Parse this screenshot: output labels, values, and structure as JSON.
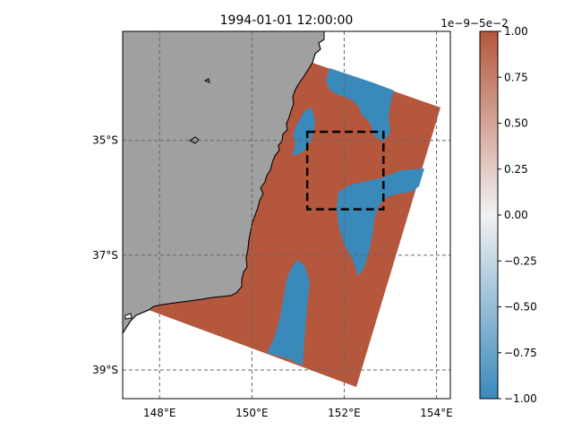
{
  "chart_data": {
    "type": "heatmap",
    "title": "1994-01-01 12:00:00",
    "map": {
      "lon_range": [
        147.2,
        154.3
      ],
      "lat_range": [
        -39.5,
        -33.1
      ],
      "x_ticks": [
        {
          "value": 148,
          "label": "148°E"
        },
        {
          "value": 150,
          "label": "150°E"
        },
        {
          "value": 152,
          "label": "152°E"
        },
        {
          "value": 154,
          "label": "154°E"
        }
      ],
      "y_ticks": [
        {
          "value": -35,
          "label": "35°S"
        },
        {
          "value": -37,
          "label": "37°S"
        },
        {
          "value": -39,
          "label": "39°S"
        }
      ],
      "grid": true,
      "land_color": "#a0a0a0",
      "domain_corners": [
        [
          151.3,
          -33.65
        ],
        [
          154.2,
          -34.45
        ],
        [
          152.25,
          -39.3
        ],
        [
          147.95,
          -38.0
        ]
      ],
      "box": {
        "lon": [
          151.2,
          152.85
        ],
        "lat": [
          -34.85,
          -36.2
        ]
      },
      "fields": [
        {
          "value": 1.0,
          "color": "#b5573c"
        },
        {
          "value": -1.0,
          "color": "#3a89bb"
        }
      ]
    },
    "colorbar": {
      "range": [
        -1.0,
        1.0
      ],
      "ticks": [
        {
          "value": 1.0,
          "label": "1.00"
        },
        {
          "value": 0.75,
          "label": "0.75"
        },
        {
          "value": 0.5,
          "label": "0.50"
        },
        {
          "value": 0.25,
          "label": "0.25"
        },
        {
          "value": 0.0,
          "label": "0.00"
        },
        {
          "value": -0.25,
          "label": "−0.25"
        },
        {
          "value": -0.5,
          "label": "−0.50"
        },
        {
          "value": -0.75,
          "label": "−0.75"
        },
        {
          "value": -1.0,
          "label": "−1.00"
        }
      ],
      "offset_label": "1e−9−5e−2",
      "colors": [
        "#3a89bb",
        "#f2f2f2",
        "#b5573c"
      ]
    }
  }
}
